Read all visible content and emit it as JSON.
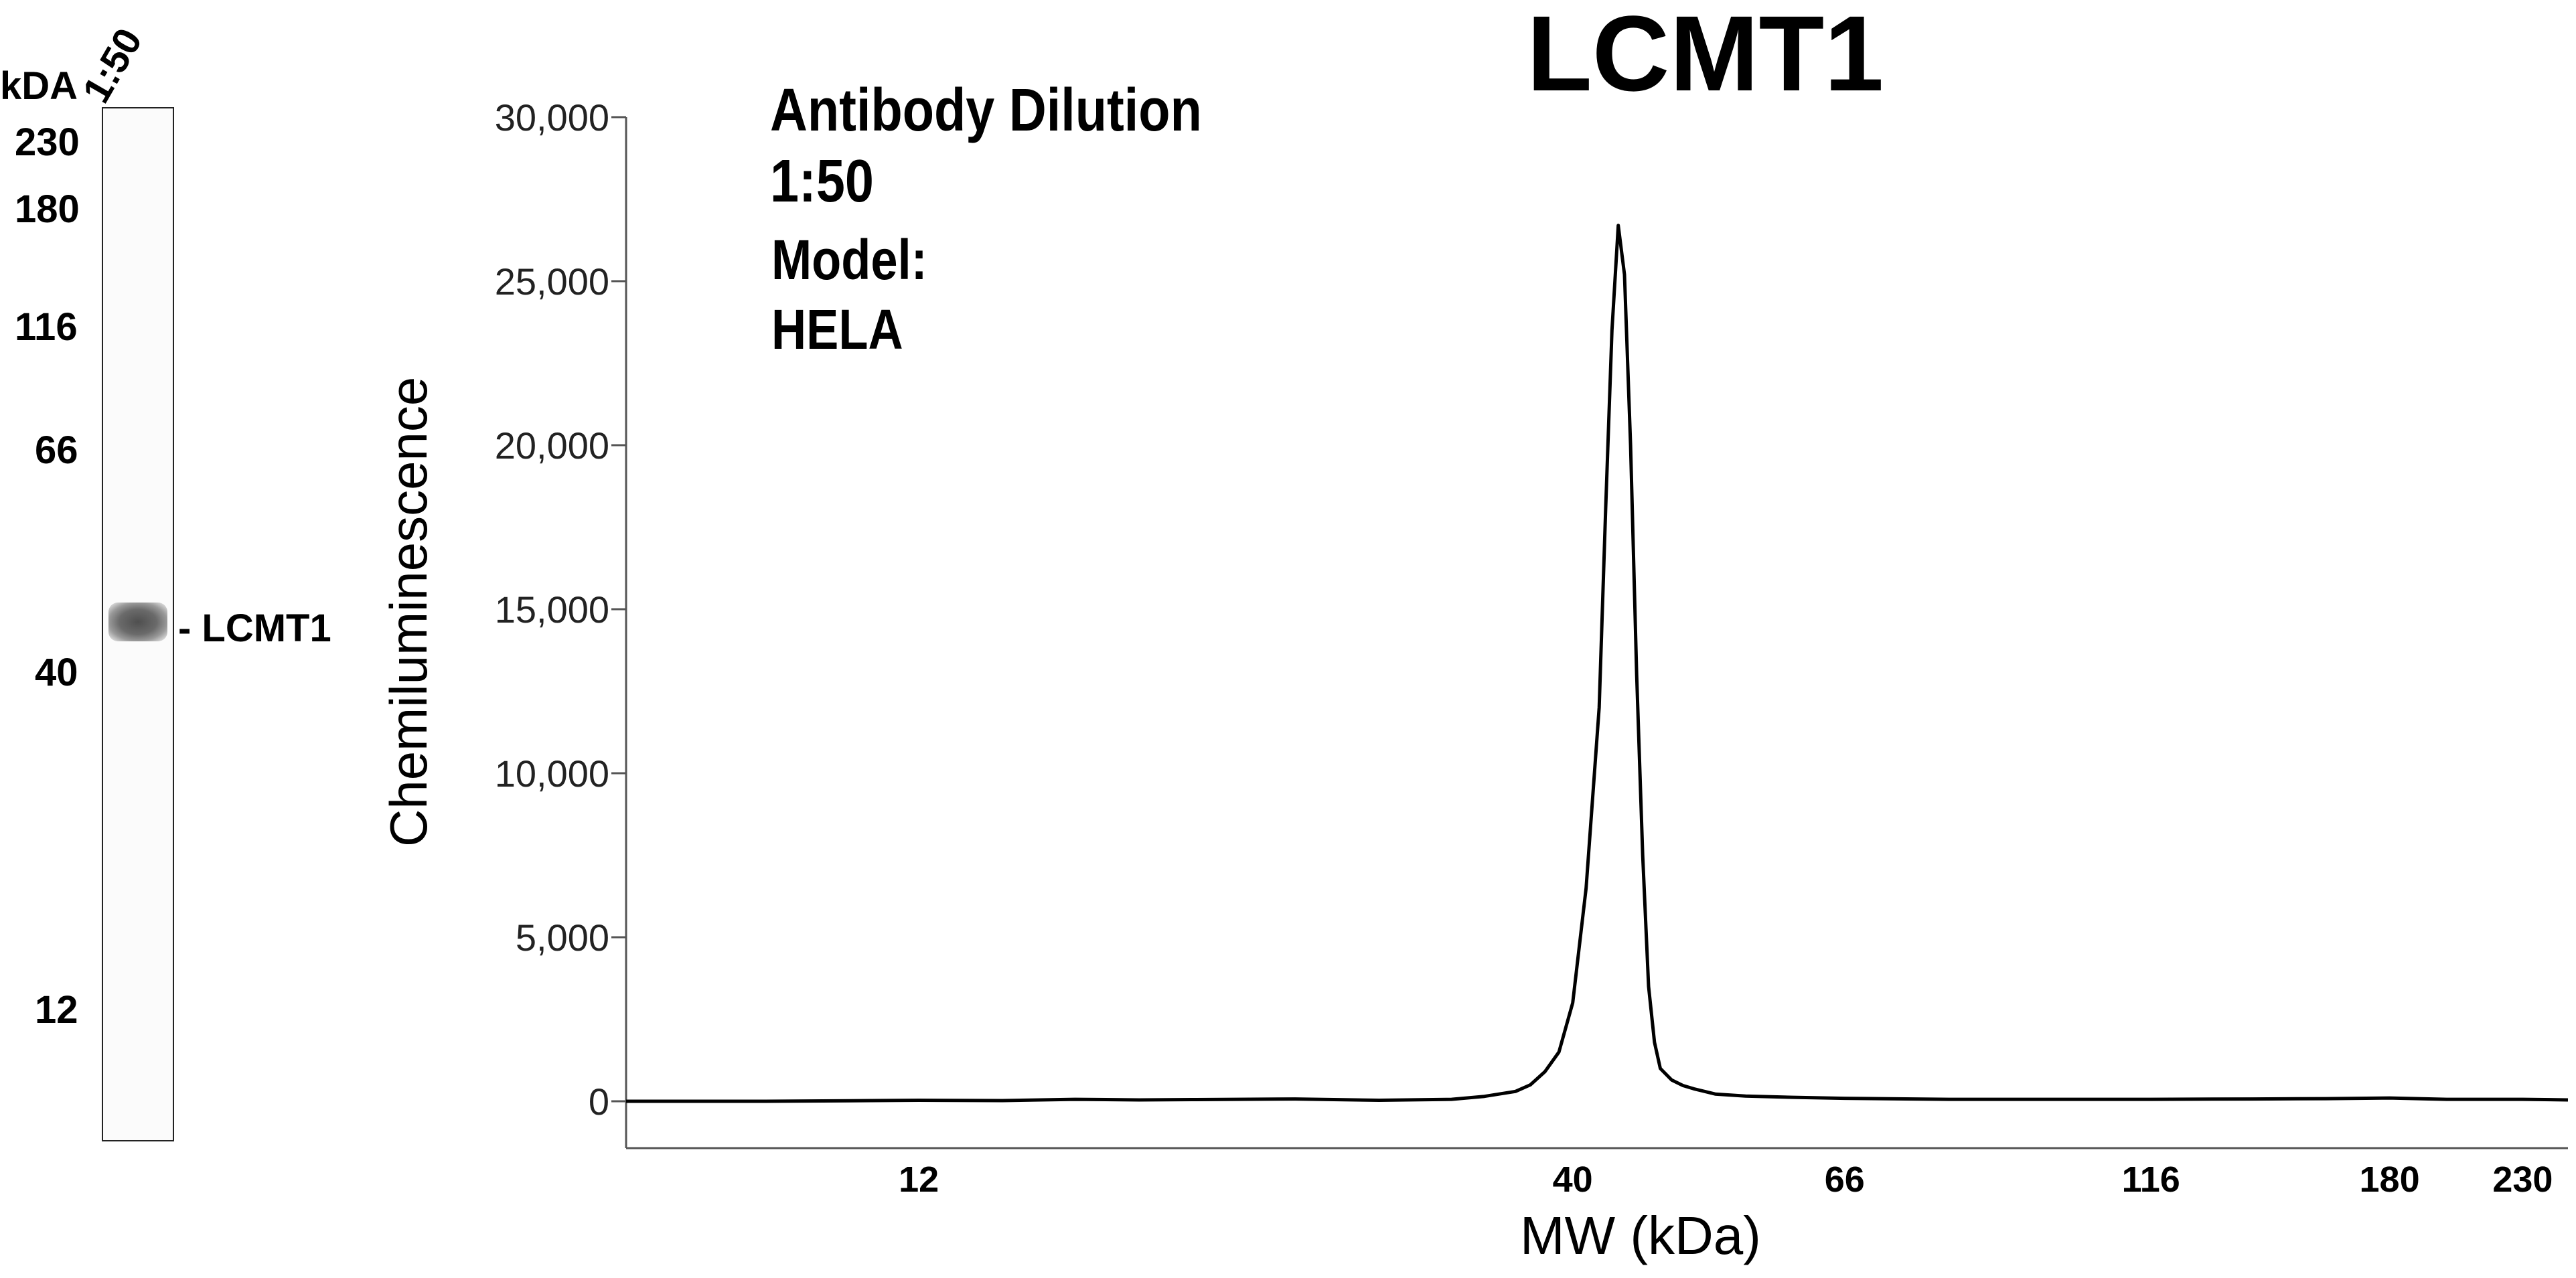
{
  "gel": {
    "unit_label": "kDA",
    "lane_label": "1:50",
    "markers": [
      "230",
      "180",
      "116",
      "66",
      "40",
      "12"
    ],
    "band_label": "- LCMT1"
  },
  "annotation": {
    "line1": "Antibody Dilution",
    "line2": "1:50",
    "line3": "Model:",
    "line4": "HELA"
  },
  "chart_data": {
    "type": "line",
    "title": "LCMT1",
    "xlabel": "MW (kDa)",
    "ylabel": "Chemiluminescence",
    "ylim": [
      0,
      30000
    ],
    "yticks": [
      0,
      5000,
      10000,
      15000,
      20000,
      25000,
      30000
    ],
    "ytick_labels": [
      "0",
      "5,000",
      "10,000",
      "15,000",
      "20,000",
      "25,000",
      "30,000"
    ],
    "x_scale": "log",
    "xlim": [
      7,
      250
    ],
    "xticks": [
      12,
      40,
      66,
      116,
      180,
      230
    ],
    "xtick_labels": [
      "12",
      "40",
      "66",
      "116",
      "180",
      "230"
    ],
    "grid": false,
    "series": [
      {
        "x": [
          7,
          9,
          11,
          12,
          14,
          16,
          18,
          20,
          24,
          28,
          32,
          34,
          36,
          37,
          38,
          39,
          40,
          41,
          42,
          42.5,
          43,
          43.5,
          44,
          44.5,
          45,
          45.5,
          46,
          46.5,
          47,
          48,
          49,
          50,
          52,
          55,
          60,
          66,
          80,
          100,
          116,
          140,
          160,
          180,
          200,
          230,
          250
        ],
        "y": [
          0,
          0,
          20,
          30,
          20,
          60,
          40,
          50,
          70,
          30,
          60,
          150,
          300,
          500,
          900,
          1500,
          3000,
          6500,
          12000,
          18000,
          23500,
          26700,
          25200,
          20000,
          13000,
          7500,
          3500,
          1800,
          1000,
          650,
          480,
          380,
          220,
          160,
          120,
          90,
          60,
          60,
          60,
          70,
          80,
          100,
          60,
          60,
          40
        ]
      }
    ]
  }
}
